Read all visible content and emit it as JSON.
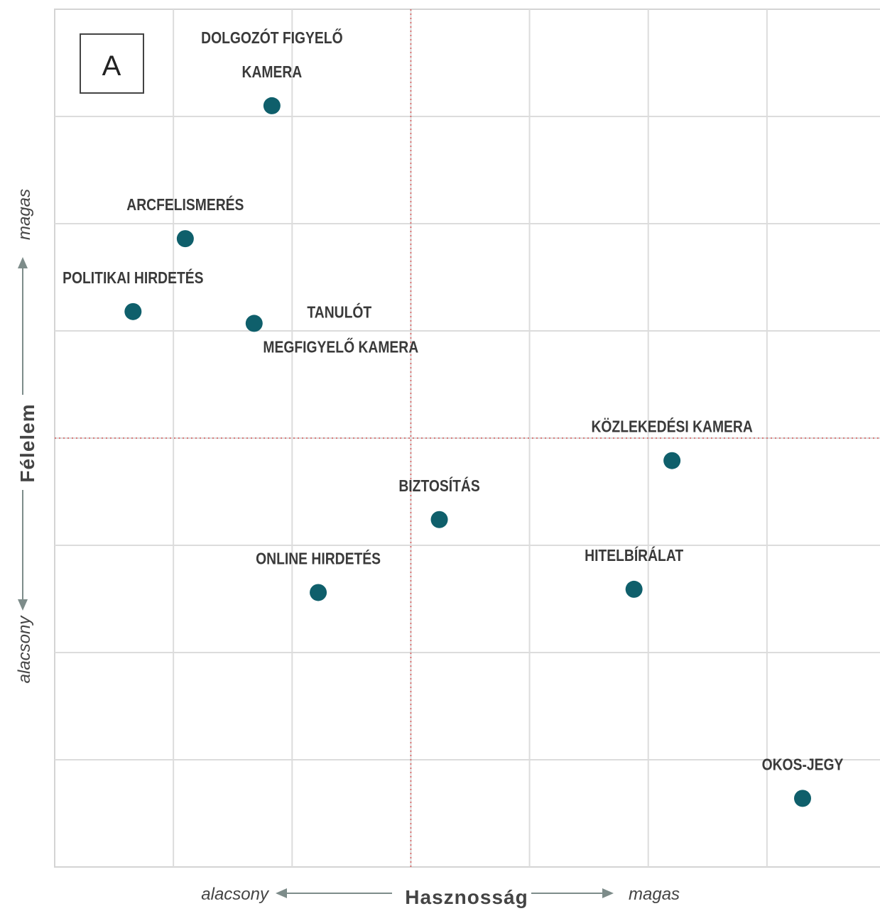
{
  "chart_data": {
    "type": "scatter",
    "panel_label": "A",
    "xlabel": "Hasznosság",
    "ylabel": "Félelem",
    "x_low_label": "alacsony",
    "x_high_label": "magas",
    "y_low_label": "alacsony",
    "y_high_label": "magas",
    "xlim": [
      0,
      7
    ],
    "ylim": [
      0,
      8
    ],
    "quadrant_split": {
      "x": 3,
      "y": 4
    },
    "grid": true,
    "point_color": "#0f5f6b",
    "midline_color": "#d65a5a",
    "points": [
      {
        "label_lines": [
          "DOLGOZÓT FIGYELŐ",
          "KAMERA"
        ],
        "x": 1.83,
        "y": 7.1,
        "label_pos": "above"
      },
      {
        "label_lines": [
          "ARCFELISMERÉS"
        ],
        "x": 1.1,
        "y": 5.86,
        "label_pos": "above"
      },
      {
        "label_lines": [
          "POLITIKAI HIRDETÉS"
        ],
        "x": 0.66,
        "y": 5.18,
        "label_pos": "above"
      },
      {
        "label_lines": [
          "TANULÓT",
          "MEGFIGYELŐ KAMERA"
        ],
        "x": 1.68,
        "y": 5.07,
        "label_pos": "right-split"
      },
      {
        "label_lines": [
          "KÖZLEKEDÉSI KAMERA"
        ],
        "x": 5.2,
        "y": 3.79,
        "label_pos": "above"
      },
      {
        "label_lines": [
          "BIZTOSÍTÁS"
        ],
        "x": 3.24,
        "y": 3.24,
        "label_pos": "above"
      },
      {
        "label_lines": [
          "ONLINE HIRDETÉS"
        ],
        "x": 2.22,
        "y": 2.56,
        "label_pos": "above"
      },
      {
        "label_lines": [
          "HITELBÍRÁLAT"
        ],
        "x": 4.88,
        "y": 2.59,
        "label_pos": "above"
      },
      {
        "label_lines": [
          "OKOS-JEGY"
        ],
        "x": 6.3,
        "y": 0.64,
        "label_pos": "above"
      }
    ]
  }
}
